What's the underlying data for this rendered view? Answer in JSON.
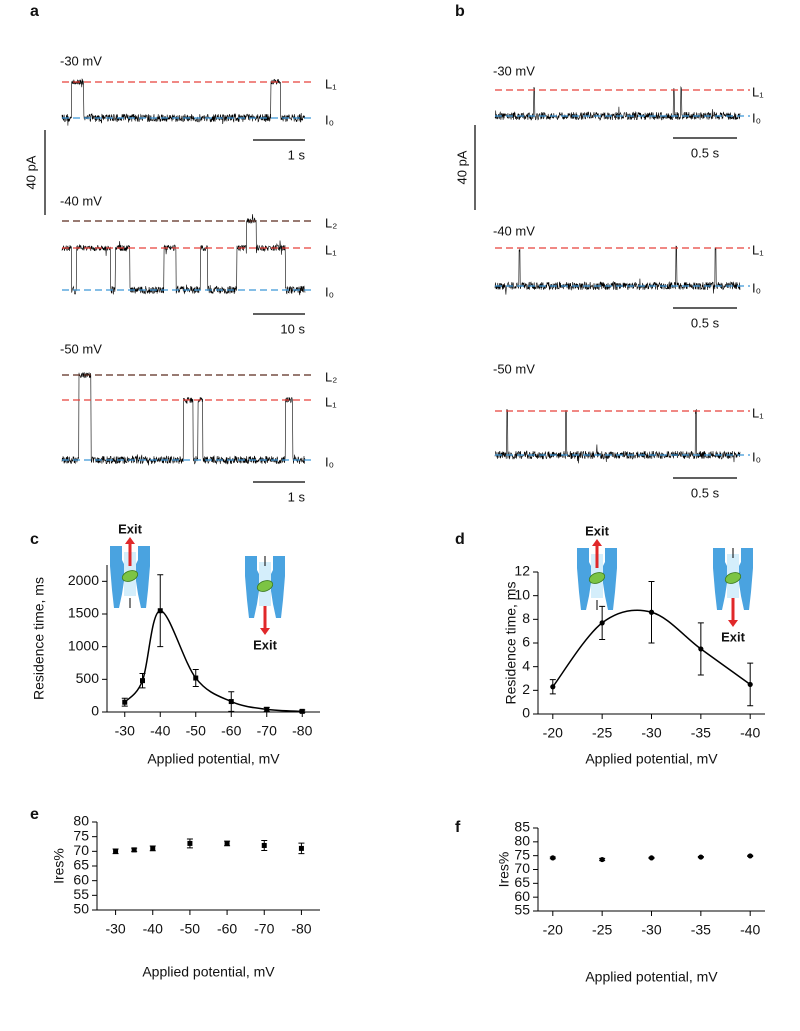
{
  "panel_labels": [
    "a",
    "b",
    "c",
    "d",
    "e",
    "f"
  ],
  "traces": [
    {
      "current_scale": "40 pA",
      "rows": [
        {
          "voltage": "-30 mV",
          "levels": [
            {
              "label": "L₁",
              "color": "#e8403a"
            },
            {
              "label": "I₀",
              "color": "#3c96d8"
            }
          ],
          "time_scale": "1 s"
        },
        {
          "voltage": "-40 mV",
          "levels": [
            {
              "label": "L₂",
              "color": "#5b2b1e"
            },
            {
              "label": "L₁",
              "color": "#e8403a"
            },
            {
              "label": "I₀",
              "color": "#3c96d8"
            }
          ],
          "time_scale": "10 s"
        },
        {
          "voltage": "-50 mV",
          "levels": [
            {
              "label": "L₂",
              "color": "#5b2b1e"
            },
            {
              "label": "L₁",
              "color": "#e8403a"
            },
            {
              "label": "I₀",
              "color": "#3c96d8"
            }
          ],
          "time_scale": "1 s"
        }
      ]
    },
    {
      "current_scale": "40 pA",
      "rows": [
        {
          "voltage": "-30 mV",
          "levels": [
            {
              "label": "L₁",
              "color": "#e8403a"
            },
            {
              "label": "I₀",
              "color": "#3c96d8"
            }
          ],
          "time_scale": "0.5 s"
        },
        {
          "voltage": "-40 mV",
          "levels": [
            {
              "label": "L₁",
              "color": "#e8403a"
            },
            {
              "label": "I₀",
              "color": "#3c96d8"
            }
          ],
          "time_scale": "0.5 s"
        },
        {
          "voltage": "-50 mV",
          "levels": [
            {
              "label": "L₁",
              "color": "#e8403a"
            },
            {
              "label": "I₀",
              "color": "#3c96d8"
            }
          ],
          "time_scale": "0.5 s"
        }
      ]
    }
  ],
  "chart_data": [
    {
      "type": "line",
      "marker": "square",
      "color": "#000000",
      "x": [
        -30,
        -35,
        -40,
        -50,
        -60,
        -70,
        -80
      ],
      "values": [
        150,
        480,
        1550,
        520,
        160,
        40,
        10
      ],
      "errors": [
        60,
        110,
        550,
        130,
        150,
        30,
        20
      ],
      "xlim": [
        -25,
        -85
      ],
      "ylim": [
        0,
        2250
      ],
      "xticks": [
        -30,
        -40,
        -50,
        -60,
        -70,
        -80
      ],
      "yticks": [
        0,
        500,
        1000,
        1500,
        2000
      ],
      "xlabel": "Applied potential, mV",
      "ylabel": "Residence time, ms",
      "annotations": [
        "Exit",
        "Exit"
      ]
    },
    {
      "type": "line",
      "marker": "circle",
      "color": "#000000",
      "x": [
        -20,
        -25,
        -30,
        -35,
        -40
      ],
      "values": [
        2.3,
        7.7,
        8.6,
        5.5,
        2.5
      ],
      "errors": [
        0.6,
        1.4,
        2.6,
        2.2,
        1.8
      ],
      "xlim": [
        -18.5,
        -41.5
      ],
      "ylim": [
        0,
        12
      ],
      "xticks": [
        -20,
        -25,
        -30,
        -35,
        -40
      ],
      "yticks": [
        0,
        2,
        4,
        6,
        8,
        10,
        12
      ],
      "xlabel": "Applied potential, mV",
      "ylabel": "Residence time, ms",
      "annotations": [
        "Exit",
        "Exit"
      ]
    },
    {
      "type": "scatter",
      "marker": "square",
      "color": "#000000",
      "x": [
        -30,
        -35,
        -40,
        -50,
        -60,
        -70,
        -80
      ],
      "values": [
        70,
        70.5,
        71,
        72.7,
        72.7,
        72,
        71
      ],
      "errors": [
        0.8,
        0.6,
        0.8,
        1.5,
        0.8,
        1.7,
        1.8
      ],
      "xlim": [
        -25,
        -85
      ],
      "ylim": [
        50,
        80
      ],
      "xticks": [
        -30,
        -40,
        -50,
        -60,
        -70,
        -80
      ],
      "yticks": [
        50,
        55,
        60,
        65,
        70,
        75,
        80
      ],
      "xlabel": "Applied potential, mV",
      "ylabel": "Ires%"
    },
    {
      "type": "scatter",
      "marker": "circle",
      "color": "#000000",
      "x": [
        -20,
        -25,
        -30,
        -35,
        -40
      ],
      "values": [
        74.2,
        73.6,
        74.2,
        74.5,
        74.9
      ],
      "errors": [
        0.3,
        0.4,
        0.2,
        0.2,
        0.2
      ],
      "xlim": [
        -18.5,
        -41.5
      ],
      "ylim": [
        55,
        85
      ],
      "xticks": [
        -20,
        -25,
        -30,
        -35,
        -40
      ],
      "yticks": [
        55,
        60,
        65,
        70,
        75,
        80,
        85
      ],
      "xlabel": "Applied potential, mV",
      "ylabel": "Ires%"
    }
  ]
}
